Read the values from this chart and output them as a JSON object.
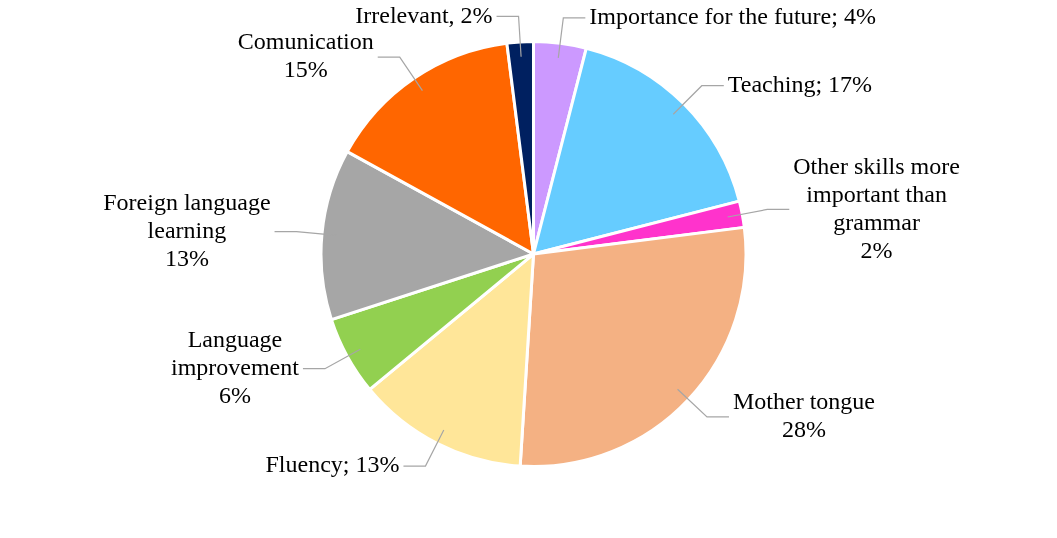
{
  "chart_data": {
    "type": "pie",
    "categories": [
      "Importance for the future",
      "Teaching",
      "Other skills more important than grammar",
      "Mother tongue",
      "Fluency",
      "Language improvement",
      "Foreign language learning",
      "Comunication",
      "Irrelevant"
    ],
    "values": [
      4,
      17,
      2,
      28,
      13,
      6,
      13,
      15,
      2
    ],
    "colors": [
      "#cc99ff",
      "#66ccff",
      "#ff33cc",
      "#f4b183",
      "#ffe699",
      "#92d050",
      "#a6a6a6",
      "#ff6600",
      "#002060"
    ],
    "value_labels": [
      "; 4%",
      "; 17%",
      "\n2%",
      "\n28%",
      "; 13%",
      "\n6%",
      "\n13%",
      "\n15%",
      ", 2%"
    ],
    "legend": false
  }
}
